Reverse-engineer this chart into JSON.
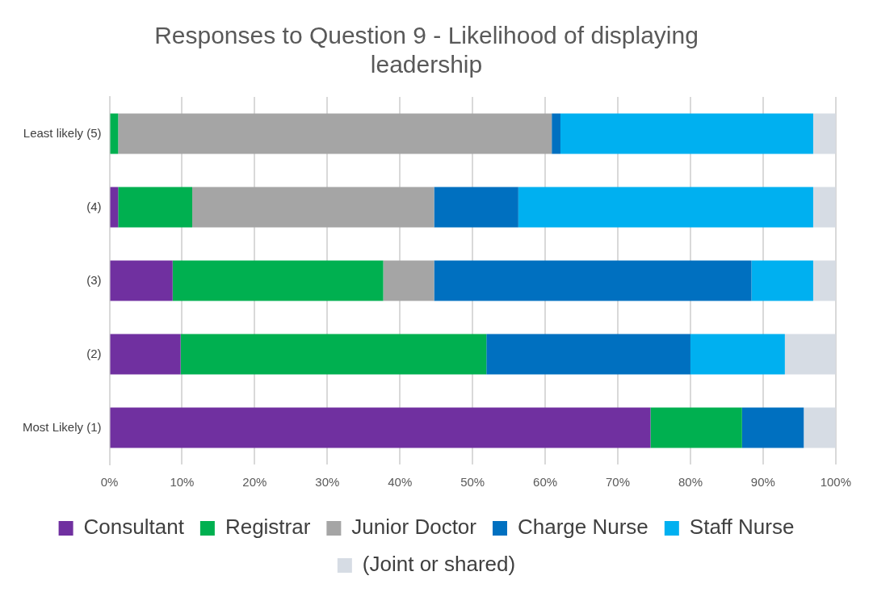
{
  "chart_data": {
    "type": "bar",
    "orientation": "horizontal",
    "stacked": true,
    "title": "Responses to Question 9 - Likelihood of displaying leadership",
    "categories": [
      "Least likely (5)",
      "(4)",
      "(3)",
      "(2)",
      "Most Likely (1)"
    ],
    "series": [
      {
        "name": "Consultant",
        "color": "#7030a0",
        "values": [
          0,
          1.2,
          8.7,
          9.8,
          74.5
        ]
      },
      {
        "name": "Registrar",
        "color": "#00b050",
        "values": [
          1.2,
          10.2,
          29,
          42.1,
          12.6
        ]
      },
      {
        "name": "Junior Doctor",
        "color": "#a5a5a5",
        "values": [
          59.7,
          33.3,
          7,
          0,
          0
        ]
      },
      {
        "name": "Charge Nurse",
        "color": "#0070c0",
        "values": [
          1.2,
          11.6,
          43.7,
          28.1,
          8.5
        ]
      },
      {
        "name": "Staff Nurse",
        "color": "#00b0f0",
        "values": [
          34.8,
          40.6,
          8.5,
          13,
          0
        ]
      },
      {
        "name": "(Joint or shared)",
        "color": "#d6dce4",
        "values": [
          3.1,
          3.1,
          3.1,
          7,
          4.4
        ]
      }
    ],
    "xlim": [
      0,
      100
    ],
    "xticks": [
      {
        "value": 0,
        "label": "0%"
      },
      {
        "value": 10,
        "label": "10%"
      },
      {
        "value": 20,
        "label": "20%"
      },
      {
        "value": 30,
        "label": "30%"
      },
      {
        "value": 40,
        "label": "40%"
      },
      {
        "value": 50,
        "label": "50%"
      },
      {
        "value": 60,
        "label": "60%"
      },
      {
        "value": 70,
        "label": "70%"
      },
      {
        "value": 80,
        "label": "80%"
      },
      {
        "value": 90,
        "label": "90%"
      },
      {
        "value": 100,
        "label": "100%"
      }
    ],
    "grid": "x",
    "legend": "bottom"
  }
}
